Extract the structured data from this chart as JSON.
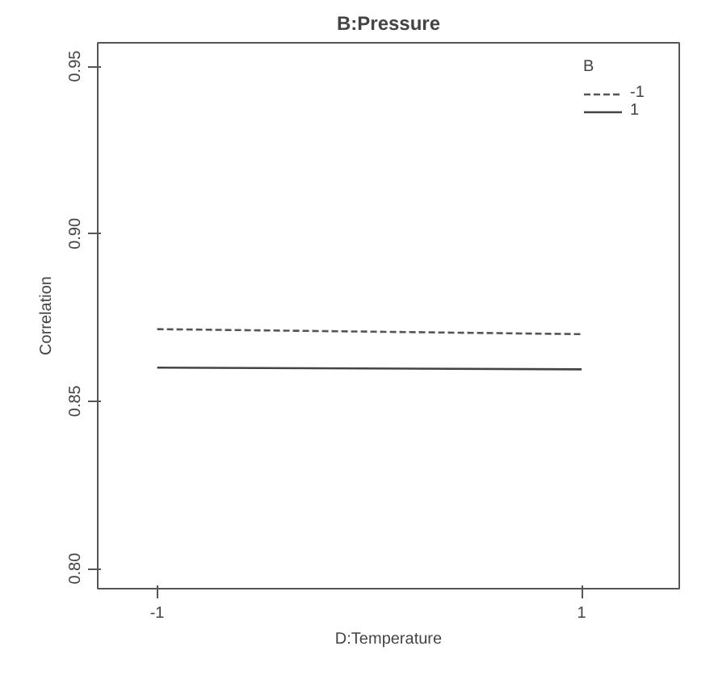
{
  "chart_data": {
    "type": "line",
    "title": "B:Pressure",
    "xlabel": "D:Temperature",
    "ylabel": "Correlation",
    "x": [
      -1,
      1
    ],
    "series": [
      {
        "name": "-1",
        "color": "#555555",
        "values": [
          0.8715,
          0.87
        ],
        "line_style": "dashed"
      },
      {
        "name": "1",
        "color": "#444444",
        "values": [
          0.86,
          0.8595
        ],
        "line_style": "solid"
      }
    ],
    "legend_title": "B",
    "legend": "top right",
    "grid": false,
    "xlim": [
      -1.28,
      1.46
    ],
    "ylim": [
      0.794,
      0.957
    ],
    "xticks": [
      -1,
      1
    ],
    "yticks": [
      {
        "value": 0.8,
        "label": "0.80"
      },
      0.85,
      {
        "value": 0.9,
        "label": "0.90"
      },
      0.95
    ]
  }
}
